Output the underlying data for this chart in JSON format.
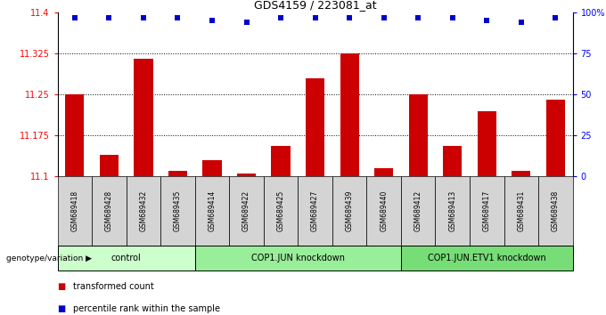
{
  "title": "GDS4159 / 223081_at",
  "samples": [
    "GSM689418",
    "GSM689428",
    "GSM689432",
    "GSM689435",
    "GSM689414",
    "GSM689422",
    "GSM689425",
    "GSM689427",
    "GSM689439",
    "GSM689440",
    "GSM689412",
    "GSM689413",
    "GSM689417",
    "GSM689431",
    "GSM689438"
  ],
  "bar_values": [
    11.25,
    11.14,
    11.315,
    11.11,
    11.13,
    11.105,
    11.155,
    11.28,
    11.325,
    11.115,
    11.25,
    11.155,
    11.22,
    11.11,
    11.24
  ],
  "percentile_values": [
    97,
    97,
    97,
    97,
    95,
    94,
    97,
    97,
    97,
    97,
    97,
    97,
    95,
    94,
    97
  ],
  "ylim_left": [
    11.1,
    11.4
  ],
  "ylim_right": [
    0,
    100
  ],
  "yticks_left": [
    11.1,
    11.175,
    11.25,
    11.325,
    11.4
  ],
  "ytick_labels_left": [
    "11.1",
    "11.175",
    "11.25",
    "11.325",
    "11.4"
  ],
  "yticks_right": [
    0,
    25,
    50,
    75,
    100
  ],
  "ytick_labels_right": [
    "0",
    "25",
    "50",
    "75",
    "100%"
  ],
  "hlines": [
    11.175,
    11.25,
    11.325
  ],
  "bar_color": "#cc0000",
  "dot_color": "#0000cc",
  "groups": [
    {
      "label": "control",
      "start": 0,
      "end": 3
    },
    {
      "label": "COP1.JUN knockdown",
      "start": 4,
      "end": 9
    },
    {
      "label": "COP1.JUN.ETV1 knockdown",
      "start": 10,
      "end": 14
    }
  ],
  "group_colors": [
    "#ccffcc",
    "#99ee99",
    "#77dd77"
  ],
  "xlabel_genotype": "genotype/variation",
  "legend_transformed": "transformed count",
  "legend_percentile": "percentile rank within the sample",
  "bg_color": "#ffffff",
  "sample_box_color": "#d4d4d4"
}
